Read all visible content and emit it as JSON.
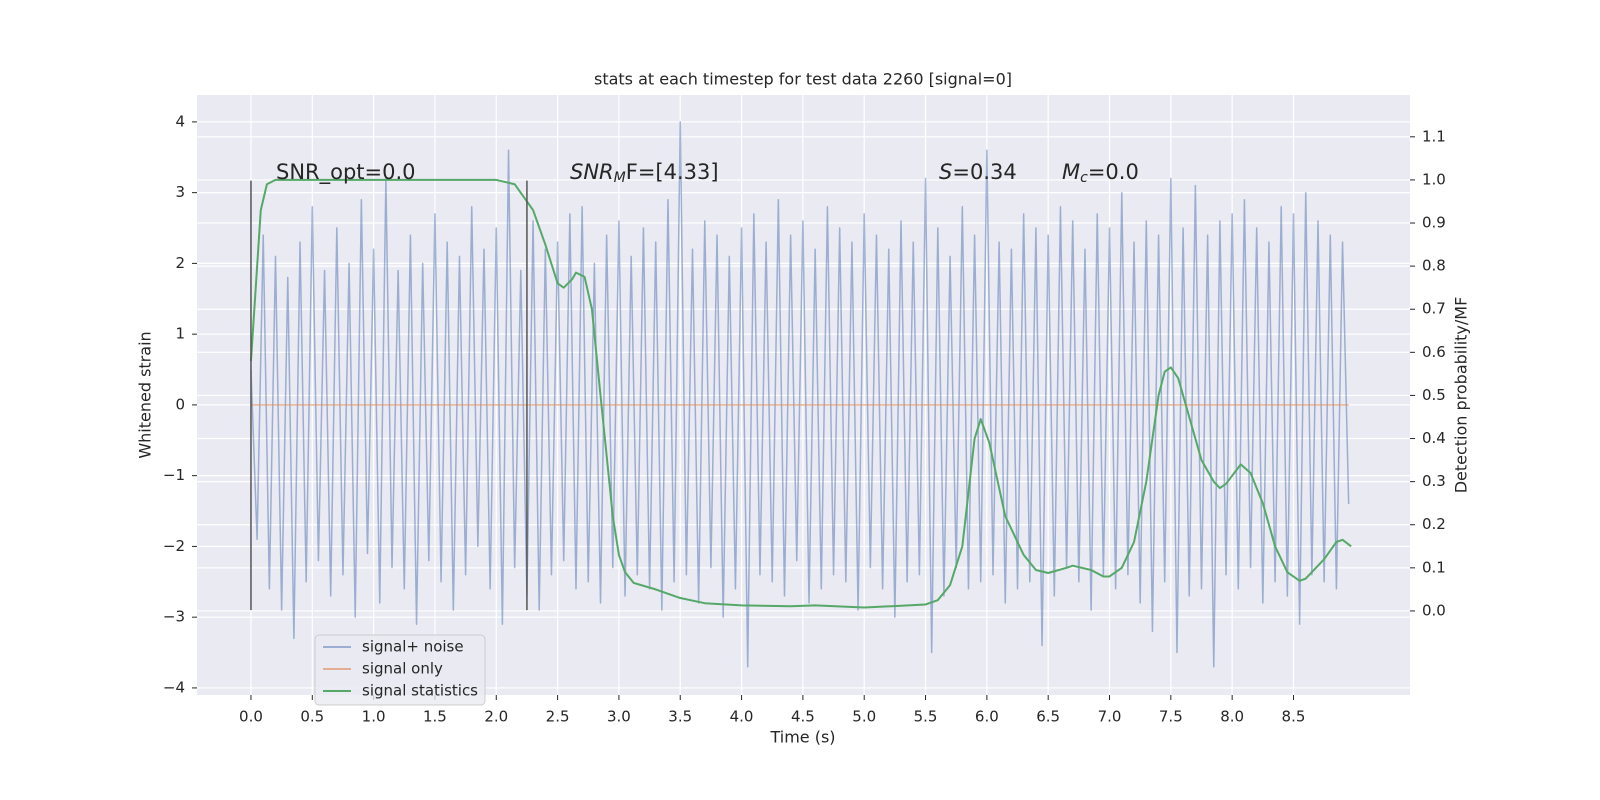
{
  "chart_data": {
    "type": "line",
    "title": "stats at each timestep for test data 2260 [signal=0]",
    "x_label": "Time (s)",
    "y_label": "Whitened strain",
    "y2_label": "Detection probability/MF",
    "xlim": [
      -0.44,
      9.45
    ],
    "ylim": [
      -4.1,
      4.38
    ],
    "y2lim": [
      -0.195,
      1.197
    ],
    "xticks": [
      {
        "value": 0,
        "label": "0.0"
      },
      {
        "value": 0.5,
        "label": "0.5"
      },
      {
        "value": 1,
        "label": "1.0"
      },
      {
        "value": 1.5,
        "label": "1.5"
      },
      {
        "value": 2,
        "label": "2.0"
      },
      {
        "value": 2.5,
        "label": "2.5"
      },
      {
        "value": 3,
        "label": "3.0"
      },
      {
        "value": 3.5,
        "label": "3.5"
      },
      {
        "value": 4,
        "label": "4.0"
      },
      {
        "value": 4.5,
        "label": "4.5"
      },
      {
        "value": 5,
        "label": "5.0"
      },
      {
        "value": 5.5,
        "label": "5.5"
      },
      {
        "value": 6,
        "label": "6.0"
      },
      {
        "value": 6.5,
        "label": "6.5"
      },
      {
        "value": 7,
        "label": "7.0"
      },
      {
        "value": 7.5,
        "label": "7.5"
      },
      {
        "value": 8,
        "label": "8.0"
      },
      {
        "value": 8.5,
        "label": "8.5"
      }
    ],
    "yticks": [
      {
        "value": -4,
        "label": "−4"
      },
      {
        "value": -3,
        "label": "−3"
      },
      {
        "value": -2,
        "label": "−2"
      },
      {
        "value": -1,
        "label": "−1"
      },
      0,
      1,
      2,
      3,
      4
    ],
    "y2ticks": [
      {
        "value": 0,
        "label": "0.0"
      },
      {
        "value": 0.1,
        "label": "0.1"
      },
      {
        "value": 0.2,
        "label": "0.2"
      },
      {
        "value": 0.3,
        "label": "0.3"
      },
      {
        "value": 0.4,
        "label": "0.4"
      },
      {
        "value": 0.5,
        "label": "0.5"
      },
      {
        "value": 0.6,
        "label": "0.6"
      },
      {
        "value": 0.7,
        "label": "0.7"
      },
      {
        "value": 0.8,
        "label": "0.8"
      },
      {
        "value": 0.9,
        "label": "0.9"
      },
      {
        "value": 1,
        "label": "1.0"
      },
      {
        "value": 1.1,
        "label": "1.1"
      }
    ],
    "grid": true,
    "legend": "lower left",
    "series": [
      {
        "name": "signal+ noise",
        "color": "#4c72b0",
        "x": [
          0,
          0.05,
          0.1,
          0.15,
          0.2,
          0.25,
          0.3,
          0.35,
          0.4,
          0.45,
          0.5,
          0.55,
          0.6,
          0.65,
          0.7,
          0.75,
          0.8,
          0.85,
          0.9,
          0.95,
          1,
          1.05,
          1.1,
          1.15,
          1.2,
          1.25,
          1.3,
          1.35,
          1.4,
          1.45,
          1.5,
          1.55,
          1.6,
          1.65,
          1.7,
          1.75,
          1.8,
          1.85,
          1.9,
          1.95,
          2,
          2.05,
          2.1,
          2.15,
          2.2,
          2.25,
          2.3,
          2.35,
          2.4,
          2.45,
          2.5,
          2.55,
          2.6,
          2.65,
          2.7,
          2.75,
          2.8,
          2.85,
          2.9,
          2.95,
          3,
          3.05,
          3.1,
          3.15,
          3.2,
          3.25,
          3.3,
          3.35,
          3.4,
          3.45,
          3.5,
          3.55,
          3.6,
          3.65,
          3.7,
          3.75,
          3.8,
          3.85,
          3.9,
          3.95,
          4,
          4.05,
          4.1,
          4.15,
          4.2,
          4.25,
          4.3,
          4.35,
          4.4,
          4.45,
          4.5,
          4.55,
          4.6,
          4.65,
          4.7,
          4.75,
          4.8,
          4.85,
          4.9,
          4.95,
          5,
          5.05,
          5.1,
          5.15,
          5.2,
          5.25,
          5.3,
          5.35,
          5.4,
          5.45,
          5.5,
          5.55,
          5.6,
          5.65,
          5.7,
          5.75,
          5.8,
          5.85,
          5.9,
          5.95,
          6,
          6.05,
          6.1,
          6.15,
          6.2,
          6.25,
          6.3,
          6.35,
          6.4,
          6.45,
          6.5,
          6.55,
          6.6,
          6.65,
          6.7,
          6.75,
          6.8,
          6.85,
          6.9,
          6.95,
          7,
          7.05,
          7.1,
          7.15,
          7.2,
          7.25,
          7.3,
          7.35,
          7.4,
          7.45,
          7.5,
          7.55,
          7.6,
          7.65,
          7.7,
          7.75,
          7.8,
          7.85,
          7.9,
          7.95,
          8,
          8.05,
          8.1,
          8.15,
          8.2,
          8.25,
          8.3,
          8.35,
          8.4,
          8.45,
          8.5,
          8.55,
          8.6,
          8.65,
          8.7,
          8.75,
          8.8,
          8.85,
          8.9,
          8.95
        ],
        "values": [
          0.5,
          -1.9,
          2.4,
          -2.6,
          2.1,
          -2.9,
          1.8,
          -3.3,
          2.3,
          -2.5,
          2.8,
          -2.2,
          1.9,
          -2.7,
          2.5,
          -2.4,
          2.0,
          -3.0,
          2.9,
          -2.1,
          2.2,
          -2.8,
          3.2,
          -2.3,
          1.9,
          -2.6,
          2.4,
          -3.1,
          2.0,
          -2.2,
          2.7,
          -2.5,
          2.3,
          -2.9,
          2.1,
          -2.4,
          2.8,
          -2.0,
          2.2,
          -2.6,
          2.5,
          -3.1,
          3.6,
          -2.3,
          1.9,
          -2.7,
          2.6,
          -2.9,
          2.2,
          -2.4,
          2.3,
          -2.2,
          2.7,
          -2.6,
          2.8,
          -2.5,
          2.0,
          -2.8,
          2.4,
          -2.3,
          2.6,
          -2.7,
          2.1,
          -2.4,
          2.5,
          -2.6,
          2.3,
          -2.9,
          2.9,
          -2.5,
          4.0,
          -2.4,
          2.2,
          -2.8,
          2.6,
          -2.3,
          2.4,
          -3.0,
          2.1,
          -2.6,
          2.5,
          -3.7,
          2.7,
          -2.4,
          2.3,
          -2.5,
          2.9,
          -2.7,
          2.4,
          -2.2,
          2.6,
          -2.8,
          2.2,
          -2.6,
          2.8,
          -2.4,
          2.5,
          -2.5,
          2.3,
          -2.9,
          2.7,
          -2.3,
          2.4,
          -2.6,
          2.2,
          -3.0,
          2.6,
          -2.5,
          2.3,
          -2.4,
          3.2,
          -3.5,
          2.5,
          -2.7,
          2.1,
          -2.3,
          2.8,
          -2.6,
          2.4,
          -2.5,
          3.6,
          -2.4,
          2.3,
          -2.8,
          2.2,
          -2.6,
          2.7,
          -2.5,
          2.5,
          -3.4,
          2.4,
          -2.7,
          2.8,
          -2.3,
          2.6,
          -2.5,
          2.2,
          -2.9,
          2.7,
          -2.4,
          2.5,
          -2.6,
          3.0,
          -2.4,
          2.3,
          -2.8,
          2.6,
          -3.2,
          2.4,
          -2.5,
          3.2,
          -3.5,
          2.5,
          -2.7,
          3.1,
          -2.6,
          2.4,
          -3.7,
          2.6,
          -2.4,
          2.7,
          -2.6,
          2.9,
          -2.3,
          2.5,
          -2.8,
          2.3,
          -2.5,
          2.8,
          -2.7,
          2.7,
          -3.1,
          3.0,
          -2.4,
          2.6,
          -2.5,
          2.4,
          -2.6,
          2.3,
          -1.4
        ]
      },
      {
        "name": "signal only",
        "color": "#dd8452",
        "x": [
          0,
          8.95
        ],
        "values": [
          0,
          0
        ]
      },
      {
        "name": "signal statistics",
        "color": "#55a868",
        "axis": "y2",
        "x": [
          0,
          0.08,
          0.13,
          0.2,
          2.0,
          2.15,
          2.3,
          2.4,
          2.5,
          2.55,
          2.62,
          2.65,
          2.72,
          2.78,
          2.85,
          2.95,
          3.0,
          3.05,
          3.12,
          3.3,
          3.5,
          3.7,
          4.0,
          4.4,
          4.6,
          5.0,
          5.3,
          5.5,
          5.6,
          5.7,
          5.8,
          5.9,
          5.95,
          6.02,
          6.15,
          6.3,
          6.4,
          6.5,
          6.65,
          6.7,
          6.85,
          6.95,
          7.0,
          7.1,
          7.2,
          7.3,
          7.4,
          7.45,
          7.5,
          7.56,
          7.62,
          7.75,
          7.85,
          7.9,
          7.95,
          8.03,
          8.07,
          8.15,
          8.25,
          8.35,
          8.45,
          8.55,
          8.6,
          8.75,
          8.85,
          8.9,
          8.97
        ],
        "values": [
          0.58,
          0.93,
          0.99,
          1.0,
          1.0,
          0.99,
          0.93,
          0.85,
          0.76,
          0.75,
          0.77,
          0.785,
          0.775,
          0.7,
          0.5,
          0.22,
          0.13,
          0.09,
          0.065,
          0.05,
          0.03,
          0.018,
          0.013,
          0.011,
          0.013,
          0.008,
          0.012,
          0.015,
          0.025,
          0.06,
          0.15,
          0.4,
          0.445,
          0.39,
          0.22,
          0.13,
          0.095,
          0.088,
          0.1,
          0.105,
          0.095,
          0.08,
          0.08,
          0.1,
          0.16,
          0.3,
          0.5,
          0.555,
          0.565,
          0.54,
          0.48,
          0.35,
          0.3,
          0.285,
          0.295,
          0.325,
          0.34,
          0.32,
          0.25,
          0.15,
          0.09,
          0.07,
          0.075,
          0.12,
          0.16,
          0.165,
          0.15
        ]
      }
    ],
    "vlines": [
      {
        "x": 0,
        "ymin": -2.9,
        "ymax": 3.17
      },
      {
        "x": 2.25,
        "ymin": -2.9,
        "ymax": 3.17
      }
    ],
    "annotations": [
      {
        "parts": [
          "SNR_opt=0.0"
        ]
      },
      {
        "parts": [
          "SNR",
          "M",
          "F=[4.33]"
        ]
      },
      {
        "parts": [
          "S",
          "=0.34"
        ]
      },
      {
        "parts": [
          "M",
          "c",
          "=0.0"
        ]
      }
    ]
  }
}
